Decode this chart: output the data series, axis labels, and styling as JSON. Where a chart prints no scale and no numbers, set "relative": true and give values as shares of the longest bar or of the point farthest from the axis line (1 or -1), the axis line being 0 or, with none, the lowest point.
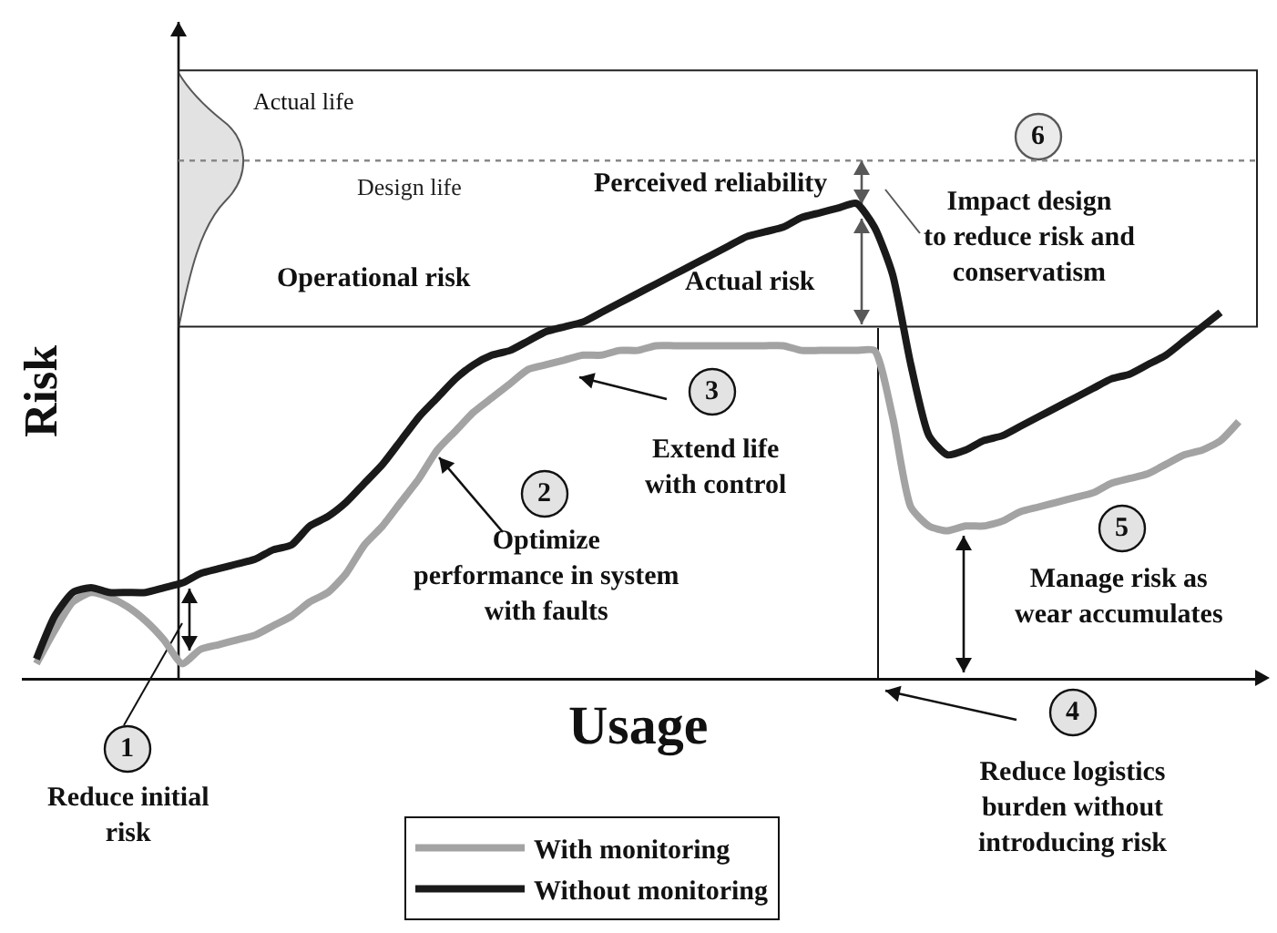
{
  "chart_data": {
    "type": "line",
    "relative": true,
    "xlabel": "Usage",
    "ylabel": "Risk",
    "legend": "bottom",
    "categories": [
      null,
      null,
      null,
      null,
      null,
      null,
      null,
      null,
      null,
      null,
      null,
      null,
      null,
      null,
      null,
      null,
      null,
      null,
      null,
      null,
      null,
      null,
      null,
      null,
      null,
      null,
      null,
      null,
      null,
      null,
      null,
      null,
      null,
      null,
      null,
      null,
      null,
      null,
      null,
      null,
      null,
      null,
      null,
      null,
      null,
      null,
      null,
      null,
      null,
      null,
      null,
      null,
      null,
      null,
      null,
      null,
      null,
      null,
      null,
      null,
      null,
      null,
      null,
      null,
      null,
      null,
      null,
      null
    ],
    "series": [
      {
        "name": "With monitoring",
        "color": "#a3a3a3",
        "values": [
          0.03,
          0.1,
          0.16,
          0.18,
          0.17,
          0.15,
          0.12,
          0.08,
          0.03,
          0.06,
          0.07,
          0.08,
          0.09,
          0.11,
          0.13,
          0.16,
          0.18,
          0.22,
          0.28,
          0.32,
          0.37,
          0.42,
          0.48,
          0.52,
          0.56,
          0.59,
          0.62,
          0.65,
          0.66,
          0.67,
          0.68,
          0.68,
          0.69,
          0.69,
          0.7,
          0.7,
          0.7,
          0.7,
          0.7,
          0.7,
          0.7,
          0.7,
          0.69,
          0.69,
          0.69,
          0.69,
          0.69,
          0.55,
          0.36,
          0.32,
          0.31,
          0.32,
          0.32,
          0.33,
          0.35,
          0.36,
          0.37,
          0.38,
          0.39,
          0.41,
          0.42,
          0.43,
          0.45,
          0.47,
          0.48,
          0.5,
          0.54,
          null
        ]
      },
      {
        "name": "Without monitoring",
        "color": "#1a1a1a",
        "values": [
          0.04,
          0.13,
          0.18,
          0.19,
          0.18,
          0.18,
          0.18,
          0.19,
          0.2,
          0.22,
          0.23,
          0.24,
          0.25,
          0.27,
          0.28,
          0.32,
          0.34,
          0.37,
          0.41,
          0.45,
          0.5,
          0.55,
          0.59,
          0.63,
          0.66,
          0.68,
          0.69,
          0.71,
          0.73,
          0.74,
          0.75,
          0.77,
          0.79,
          0.81,
          0.83,
          0.85,
          0.87,
          0.89,
          0.91,
          0.93,
          0.94,
          0.95,
          0.97,
          0.98,
          0.99,
          1,
          0.95,
          0.85,
          0.66,
          0.51,
          0.47,
          0.48,
          0.5,
          0.51,
          0.53,
          0.55,
          0.57,
          0.59,
          0.61,
          0.63,
          0.64,
          0.66,
          0.68,
          0.71,
          0.74,
          0.77,
          null,
          null
        ]
      }
    ],
    "bands": [
      {
        "axis": "y",
        "from": 0.74,
        "to": 1.28,
        "label": "Operational risk",
        "color": "#ffffff"
      }
    ],
    "ref_lines": [
      {
        "axis": "y",
        "value": 1.09,
        "label": "Design life",
        "line_style": "dotted"
      }
    ],
    "annotations": [
      "Actual life",
      "Perceived reliability",
      "Actual risk",
      "6",
      "Impact design\nto reduce risk and\nconservatism",
      "3",
      "Extend life\nwith control",
      "2",
      "Optimize\nperformance in system\nwith faults",
      "5",
      "Manage risk as\nwear accumulates",
      "1",
      "Reduce initial\nrisk",
      "4",
      "Reduce logistics\nburden without\nintroducing risk"
    ]
  }
}
